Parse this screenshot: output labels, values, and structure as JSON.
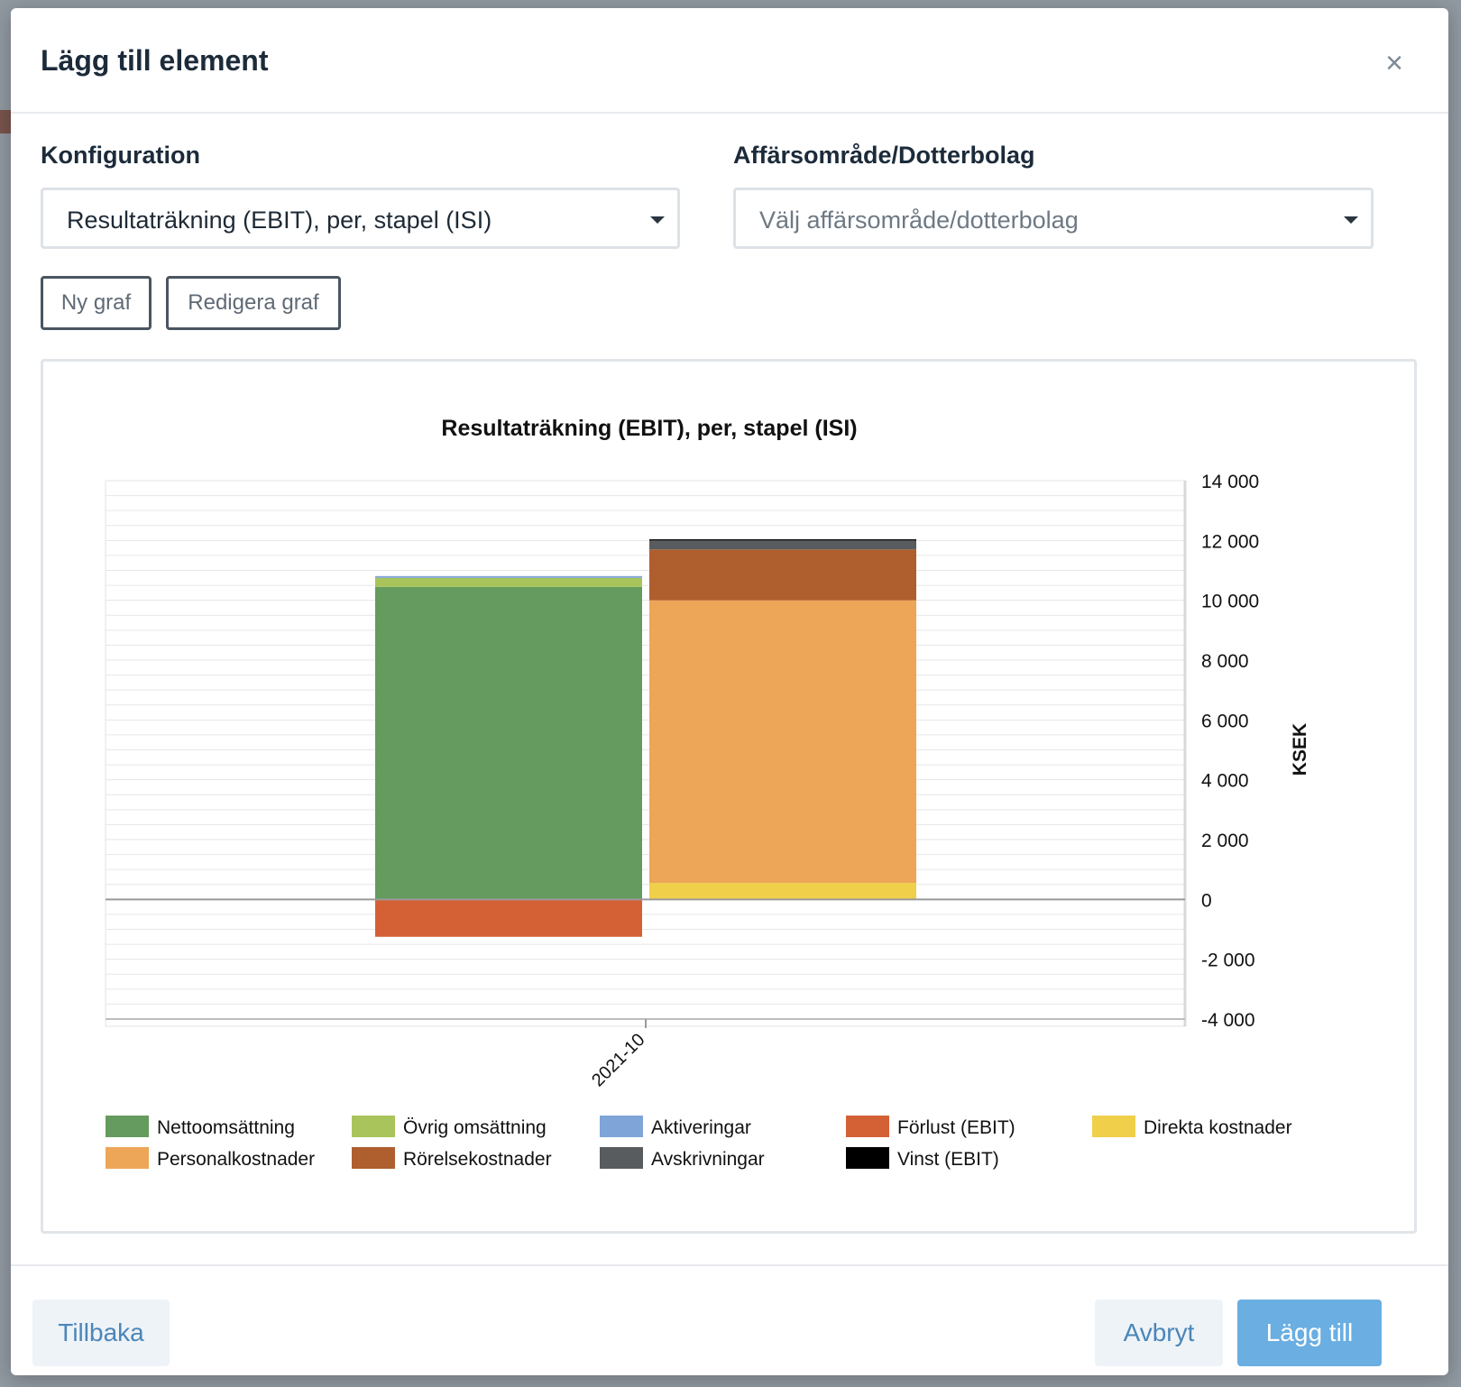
{
  "modal": {
    "title": "Lägg till element",
    "close_symbol": "×"
  },
  "form": {
    "configuration": {
      "label": "Konfiguration",
      "value": "Resultaträkning (EBIT), per, stapel (ISI)"
    },
    "business_area": {
      "label": "Affärsområde/Dotterbolag",
      "placeholder": "Välj affärsområde/dotterbolag"
    },
    "buttons": {
      "new_graph": "Ny graf",
      "edit_graph": "Redigera graf"
    }
  },
  "footer": {
    "back": "Tillbaka",
    "cancel": "Avbryt",
    "add": "Lägg till"
  },
  "colors": {
    "primary": "#6aaee2",
    "link": "#4b86b8"
  },
  "chart_data": {
    "type": "bar",
    "stacked": true,
    "title": "Resultaträkning (EBIT), per, stapel (ISI)",
    "ylabel": "KSEK",
    "xlabel": "",
    "categories": [
      "2021-10"
    ],
    "ylim": [
      -4000,
      14000
    ],
    "yticks": [
      14000,
      12000,
      10000,
      8000,
      6000,
      4000,
      2000,
      0,
      -2000,
      -4000
    ],
    "ytick_labels": [
      "14 000",
      "12 000",
      "10 000",
      "8 000",
      "6 000",
      "4 000",
      "2 000",
      "0",
      "-2 000",
      "-4 000"
    ],
    "y_axis_side": "right",
    "grid": true,
    "legend_position": "bottom",
    "stacks": [
      {
        "stack": "income",
        "series": [
          {
            "name": "Nettoomsättning",
            "color": "#659b5e",
            "values": [
              10450
            ]
          },
          {
            "name": "Övrig omsättning",
            "color": "#a8c45a",
            "values": [
              300
            ]
          },
          {
            "name": "Aktiveringar",
            "color": "#7ea4d8",
            "values": [
              60
            ]
          },
          {
            "name": "Förlust (EBIT)",
            "color": "#d46136",
            "values": [
              -1250
            ]
          }
        ]
      },
      {
        "stack": "costs",
        "series": [
          {
            "name": "Direkta kostnader",
            "color": "#f0cf4a",
            "values": [
              550
            ]
          },
          {
            "name": "Personalkostnader",
            "color": "#eda558",
            "values": [
              9450
            ]
          },
          {
            "name": "Rörelsekostnader",
            "color": "#af5e2e",
            "values": [
              1700
            ]
          },
          {
            "name": "Avskrivningar",
            "color": "#595c5e",
            "values": [
              300
            ]
          },
          {
            "name": "Vinst (EBIT)",
            "color": "#000000",
            "values": [
              40
            ]
          }
        ]
      }
    ],
    "legend": [
      {
        "name": "Nettoomsättning",
        "color": "#659b5e"
      },
      {
        "name": "Övrig omsättning",
        "color": "#a8c45a"
      },
      {
        "name": "Aktiveringar",
        "color": "#7ea4d8"
      },
      {
        "name": "Förlust (EBIT)",
        "color": "#d46136"
      },
      {
        "name": "Direkta kostnader",
        "color": "#f0cf4a"
      },
      {
        "name": "Personalkostnader",
        "color": "#eda558"
      },
      {
        "name": "Rörelsekostnader",
        "color": "#af5e2e"
      },
      {
        "name": "Avskrivningar",
        "color": "#595c5e"
      },
      {
        "name": "Vinst (EBIT)",
        "color": "#000000"
      }
    ]
  }
}
